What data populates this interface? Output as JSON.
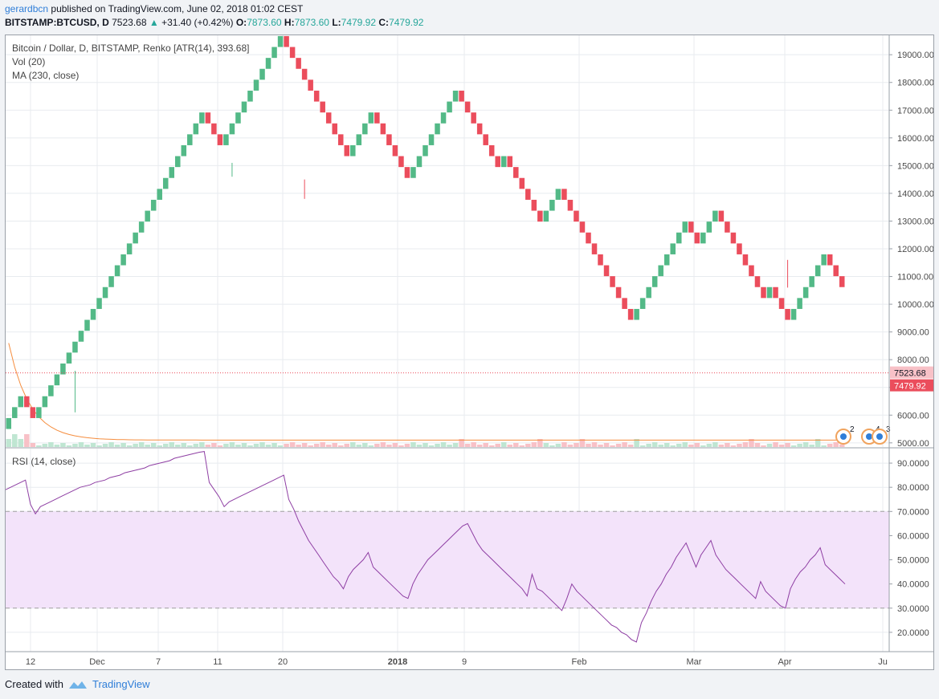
{
  "header": {
    "user": "gerardbcn",
    "published": "published on TradingView.com, June 02, 2018 01:02 CEST",
    "symbol": "BITSTAMP:BTCUSD, D",
    "last": "7523.68",
    "change": "+31.40 (+0.42%)",
    "o_label": "O:",
    "o": "7873.60",
    "h_label": "H:",
    "h": "7873.60",
    "l_label": "L:",
    "l": "7479.92",
    "c_label": "C:",
    "c": "7479.92"
  },
  "legend": {
    "title": "Bitcoin / Dollar, D, BITSTAMP, Renko [ATR(14), 393.68]",
    "vol": "Vol (20)",
    "ma": "MA (230, close)",
    "rsi": "RSI (14, close)"
  },
  "footer": {
    "created": "Created with",
    "brand": "TradingView"
  },
  "colors": {
    "up": "#53b987",
    "down": "#eb4d5c",
    "ma": "#f58d3e",
    "rsi": "#8e3ea3",
    "rsi_band": "#f3e3fa",
    "grid": "#e8ebef"
  },
  "chart_data": [
    {
      "type": "renko",
      "title": "Bitcoin / Dollar, D, BITSTAMP, Renko [ATR(14), 393.68]",
      "y_ticks": [
        5000,
        6000,
        7000,
        8000,
        9000,
        10000,
        11000,
        12000,
        13000,
        14000,
        15000,
        16000,
        17000,
        18000,
        19000
      ],
      "y_tick_labels": [
        "5000.00",
        "6000.00",
        "7000.00",
        "8000.00",
        "9000.00",
        "10000.00",
        "11000.00",
        "12000.00",
        "13000.00",
        "14000.00",
        "15000.00",
        "16000.00",
        "17000.00",
        "18000.00",
        "19000.00"
      ],
      "ylim": [
        4850,
        19700
      ],
      "x_ticks": [
        "12",
        "Dec",
        "7",
        "11",
        "20",
        "2018",
        "9",
        "Feb",
        "Mar",
        "Apr",
        "Ju"
      ],
      "box_size": 393.68,
      "start_level": 5500,
      "bricks": [
        1,
        1,
        1,
        -1,
        -1,
        1,
        1,
        1,
        1,
        1,
        1,
        1,
        1,
        1,
        1,
        1,
        1,
        1,
        1,
        1,
        1,
        1,
        1,
        1,
        1,
        1,
        1,
        1,
        1,
        1,
        1,
        1,
        1,
        -1,
        -1,
        -1,
        1,
        1,
        1,
        1,
        1,
        1,
        1,
        1,
        1,
        1,
        -1,
        -1,
        -1,
        -1,
        -1,
        -1,
        -1,
        -1,
        -1,
        -1,
        -1,
        1,
        1,
        1,
        1,
        -1,
        -1,
        -1,
        -1,
        -1,
        -1,
        1,
        1,
        1,
        1,
        1,
        1,
        1,
        1,
        -1,
        -1,
        -1,
        -1,
        -1,
        -1,
        -1,
        1,
        -1,
        -1,
        -1,
        -1,
        -1,
        -1,
        1,
        1,
        1,
        -1,
        -1,
        -1,
        -1,
        -1,
        -1,
        -1,
        -1,
        -1,
        -1,
        -1,
        -1,
        1,
        1,
        1,
        1,
        1,
        1,
        1,
        1,
        1,
        -1,
        -1,
        1,
        1,
        1,
        -1,
        -1,
        -1,
        -1,
        -1,
        -1,
        -1,
        -1,
        1,
        -1,
        -1,
        -1,
        1,
        1,
        1,
        1,
        1,
        1,
        -1,
        -1,
        -1
      ],
      "current_price": 7523.68,
      "current_label": "7523.68",
      "close_label": "7479.92",
      "ma_label": "MA (230, close)",
      "vol_label": "Vol (20)",
      "event_marks": [
        "2",
        "4",
        "3"
      ]
    },
    {
      "type": "line",
      "title": "RSI (14, close)",
      "y_ticks": [
        20,
        30,
        40,
        50,
        60,
        70,
        80,
        90
      ],
      "y_tick_labels": [
        "20.0000",
        "30.0000",
        "40.0000",
        "50.0000",
        "60.0000",
        "70.0000",
        "80.0000",
        "90.0000"
      ],
      "ylim": [
        12,
        96
      ],
      "band": [
        30,
        70
      ],
      "values": [
        79,
        80,
        81,
        82,
        83,
        73,
        69,
        72,
        73,
        74,
        75,
        76,
        77,
        78,
        79,
        80,
        80.5,
        81,
        82,
        82.5,
        83,
        84,
        84.5,
        85,
        86,
        86.5,
        87,
        87.5,
        88,
        89,
        89.5,
        90,
        90.5,
        91,
        92,
        92.5,
        93,
        93.5,
        94,
        94.5,
        94.8,
        82,
        79,
        76,
        72,
        74,
        75,
        76,
        77,
        78,
        79,
        80,
        81,
        82,
        83,
        84,
        85,
        75,
        71,
        66,
        62,
        58,
        55,
        52,
        49,
        46,
        43,
        41,
        38,
        43,
        46,
        48,
        50,
        53,
        47,
        45,
        43,
        41,
        39,
        37,
        35,
        34,
        40,
        44,
        47,
        50,
        52,
        54,
        56,
        58,
        60,
        62,
        64,
        65,
        61,
        57,
        54,
        52,
        50,
        48,
        46,
        44,
        42,
        40,
        38,
        35,
        44,
        38,
        37,
        35,
        33,
        31,
        29,
        34,
        40,
        37,
        35,
        33,
        31,
        29,
        27,
        25,
        23,
        22,
        20,
        19,
        17,
        16,
        24,
        28,
        33,
        37,
        40,
        44,
        47,
        51,
        54,
        57,
        52,
        47,
        52,
        55,
        58,
        52,
        49,
        46,
        44,
        42,
        40,
        38,
        36,
        34,
        41,
        37,
        35,
        33,
        31,
        30,
        38,
        42,
        45,
        47,
        50,
        52,
        55,
        48,
        46,
        44,
        42,
        40
      ],
      "color": "#8e3ea3"
    }
  ]
}
